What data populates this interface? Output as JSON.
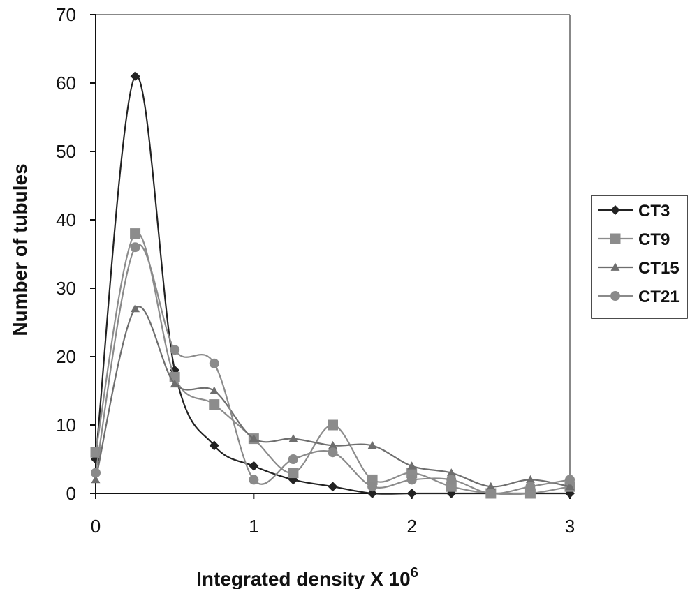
{
  "chart_data": {
    "type": "line",
    "title": "",
    "xlabel": "Integrated density X 10",
    "xlabel_superscript": "6",
    "ylabel": "Number of tubules",
    "xlim": [
      0,
      3
    ],
    "ylim": [
      0,
      70
    ],
    "xticks": [
      "0",
      "1",
      "2",
      "3"
    ],
    "yticks": [
      "0",
      "10",
      "20",
      "30",
      "40",
      "50",
      "60",
      "70"
    ],
    "grid": false,
    "smooth": true,
    "legend": "right",
    "x": [
      0,
      0.25,
      0.5,
      0.75,
      1,
      1.25,
      1.5,
      1.75,
      2,
      2.25,
      2.5,
      2.75,
      3
    ],
    "series": [
      {
        "name": "CT3",
        "marker": "diamond",
        "color": "#222222",
        "values": [
          5,
          61,
          18,
          7,
          4,
          2,
          1,
          0,
          0,
          0,
          0,
          0,
          0
        ]
      },
      {
        "name": "CT9",
        "marker": "square",
        "color": "#8c8c8c",
        "values": [
          6,
          38,
          17,
          13,
          8,
          3,
          10,
          2,
          3,
          1,
          0,
          0,
          1
        ]
      },
      {
        "name": "CT15",
        "marker": "triangle",
        "color": "#6e6e6e",
        "values": [
          2,
          27,
          16,
          15,
          8,
          8,
          7,
          7,
          4,
          3,
          1,
          2,
          1
        ]
      },
      {
        "name": "CT21",
        "marker": "circle",
        "color": "#8a8a8a",
        "values": [
          3,
          36,
          21,
          19,
          2,
          5,
          6,
          1,
          2,
          2,
          0,
          1,
          2
        ]
      }
    ]
  }
}
